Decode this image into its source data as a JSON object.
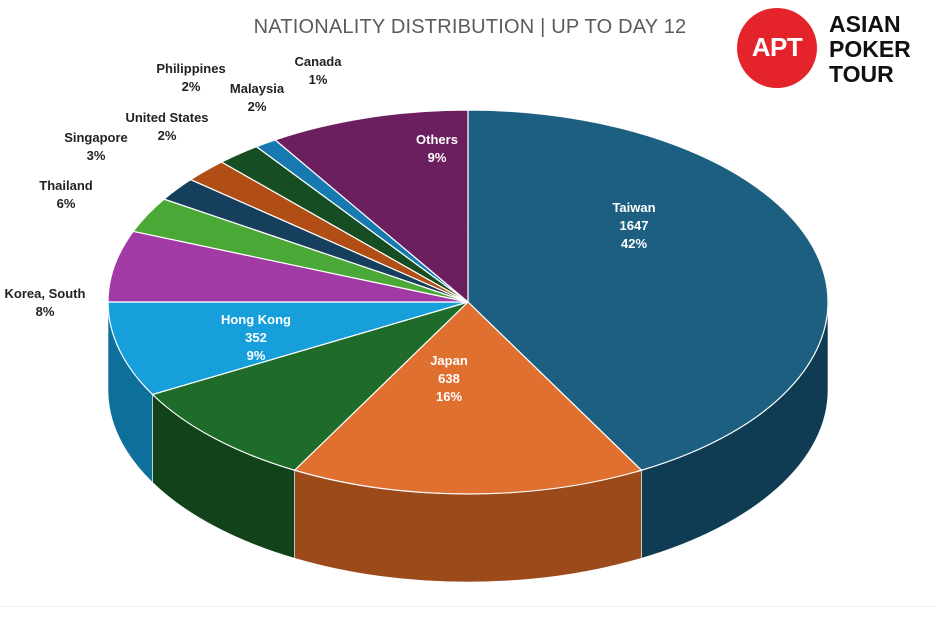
{
  "chart_data": {
    "type": "pie",
    "title": "NATIONALITY DISTRIBUTION | UP TO DAY 12",
    "slices": [
      {
        "label": "Taiwan",
        "value": 1647,
        "percent": "42%",
        "show_value": true,
        "color": "#1c5f80",
        "side": "#0f3c53",
        "label_inside": true
      },
      {
        "label": "Japan",
        "value": 638,
        "percent": "16%",
        "show_value": true,
        "color": "#e07030",
        "side": "#9c4a1a",
        "label_inside": true
      },
      {
        "label": "Hong Kong",
        "value": 352,
        "percent": "9%",
        "show_value": true,
        "color": "#1e6b2a",
        "side": "#124219",
        "label_inside": true
      },
      {
        "label": "Korea, South",
        "value": 8,
        "percent": "8%",
        "show_value": false,
        "color": "#169fdb",
        "side": "#0d6f9a",
        "label_inside": false
      },
      {
        "label": "Thailand",
        "value": 6,
        "percent": "6%",
        "show_value": false,
        "color": "#a23aa6",
        "side": "#6e2270",
        "label_inside": false
      },
      {
        "label": "Singapore",
        "value": 3,
        "percent": "3%",
        "show_value": false,
        "color": "#4aa836",
        "side": "#2f7122",
        "label_inside": false
      },
      {
        "label": "United States",
        "value": 2,
        "percent": "2%",
        "show_value": false,
        "color": "#153f5c",
        "side": "#0c2638",
        "label_inside": false
      },
      {
        "label": "Philippines",
        "value": 2,
        "percent": "2%",
        "show_value": false,
        "color": "#b04e15",
        "side": "#79330c",
        "label_inside": false
      },
      {
        "label": "Malaysia",
        "value": 2,
        "percent": "2%",
        "show_value": false,
        "color": "#174d22",
        "side": "#0d2f14",
        "label_inside": false
      },
      {
        "label": "Canada",
        "value": 1,
        "percent": "1%",
        "show_value": false,
        "color": "#167ab0",
        "side": "#0d5178",
        "label_inside": false
      },
      {
        "label": "Others",
        "value": 9,
        "percent": "9%",
        "show_value": false,
        "color": "#6b1f5e",
        "side": "#43123b",
        "label_inside": true
      }
    ]
  },
  "logo": {
    "mark": "APT",
    "lines": [
      "ASIAN",
      "POKER",
      "TOUR"
    ]
  }
}
